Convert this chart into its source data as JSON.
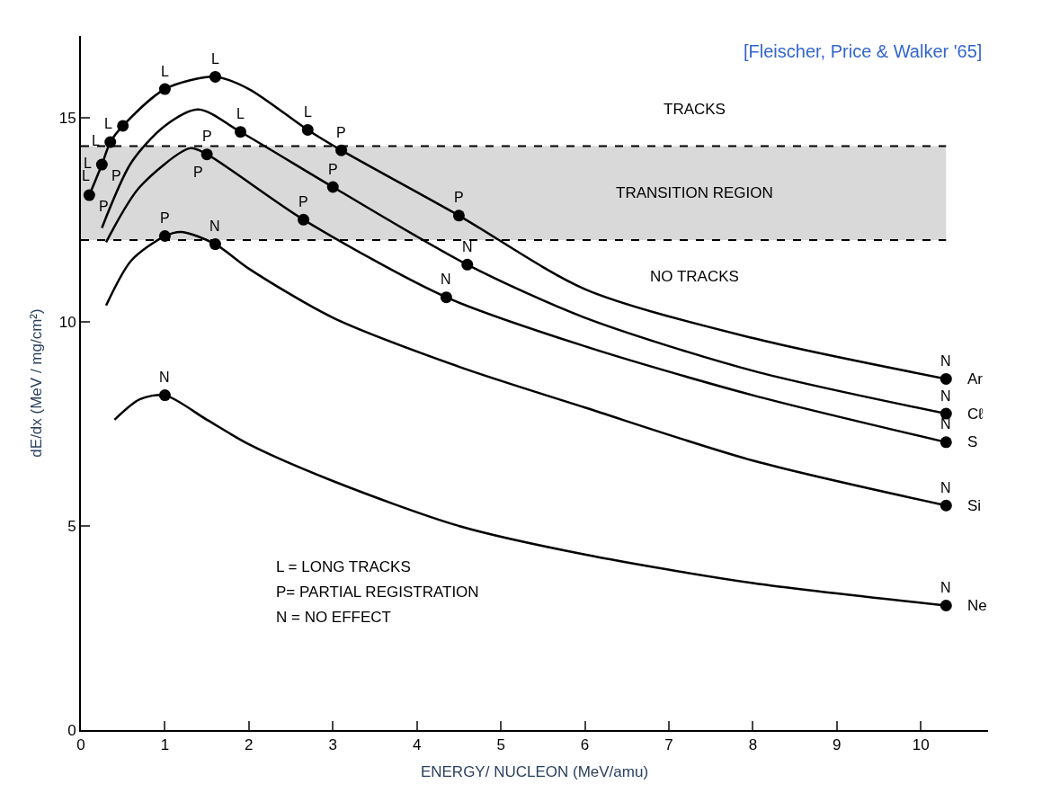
{
  "chart_data": {
    "type": "line",
    "xlabel": "ENERGY/ NUCLEON (MeV/amu)",
    "ylabel": "dE/dx (MeV / mg/cm²)",
    "xlim": [
      0,
      10.8
    ],
    "ylim": [
      0,
      17
    ],
    "xticks": [
      0,
      1,
      2,
      3,
      4,
      5,
      6,
      7,
      8,
      9,
      10
    ],
    "yticks": [
      0,
      5,
      10,
      15
    ],
    "grid": false,
    "legend": false,
    "line_style": "solid",
    "marker": "none",
    "series": [
      {
        "name": "Ar",
        "color": "#000000",
        "x": [
          0.1,
          0.25,
          0.35,
          0.5,
          1.0,
          1.6,
          2.0,
          2.7,
          3.1,
          4.5,
          6,
          8,
          10.3
        ],
        "values": [
          13.1,
          13.85,
          14.4,
          14.8,
          15.7,
          16.0,
          15.7,
          14.7,
          14.2,
          12.6,
          10.8,
          9.6,
          8.6
        ]
      },
      {
        "name": "Cℓ",
        "color": "#000000",
        "x": [
          0.25,
          0.6,
          1.0,
          1.4,
          1.9,
          3.0,
          4.6,
          6,
          8,
          10.3
        ],
        "values": [
          12.3,
          13.9,
          14.8,
          15.2,
          14.65,
          13.3,
          11.4,
          10.1,
          8.8,
          7.75
        ]
      },
      {
        "name": "S",
        "color": "#000000",
        "x": [
          0.3,
          0.7,
          1.3,
          1.5,
          2.65,
          4.35,
          6,
          8,
          10.3
        ],
        "values": [
          11.95,
          13.3,
          14.25,
          14.1,
          12.5,
          10.6,
          9.4,
          8.2,
          7.05
        ]
      },
      {
        "name": "Si",
        "color": "#000000",
        "x": [
          0.3,
          0.6,
          1.0,
          1.2,
          1.6,
          2.0,
          3.0,
          4.5,
          6,
          8,
          10.3
        ],
        "values": [
          10.4,
          11.5,
          12.1,
          12.2,
          11.9,
          11.3,
          10.1,
          8.9,
          7.9,
          6.6,
          5.5
        ]
      },
      {
        "name": "Ne",
        "color": "#000000",
        "x": [
          0.4,
          0.7,
          1.0,
          1.5,
          2.0,
          3.0,
          4.5,
          6,
          8,
          10.3
        ],
        "values": [
          7.6,
          8.1,
          8.2,
          7.6,
          7.0,
          6.1,
          5.0,
          4.3,
          3.6,
          3.05
        ]
      },
      {
        "type": "scatter",
        "marker": "circle",
        "color": "#000000",
        "x": [
          0.1,
          0.25,
          0.35,
          0.5,
          1.0,
          1.6,
          2.7,
          3.1,
          4.5,
          10.3,
          1.9,
          3.0,
          4.6,
          10.3,
          1.5,
          2.65,
          4.35,
          10.3,
          1.0,
          1.6,
          10.3,
          1.0,
          10.3
        ],
        "values": [
          13.1,
          13.85,
          14.4,
          14.8,
          15.7,
          16.0,
          14.7,
          14.2,
          12.6,
          8.6,
          14.65,
          13.3,
          11.4,
          7.75,
          14.1,
          12.5,
          10.6,
          7.05,
          12.1,
          11.9,
          5.5,
          8.2,
          3.05
        ]
      }
    ],
    "ref_lines": [
      {
        "axis": "y",
        "value": 14.3,
        "color": "#000000",
        "line_style": "dashed"
      },
      {
        "axis": "y",
        "value": 12.0,
        "color": "#000000",
        "line_style": "dashed"
      }
    ],
    "bands": [
      {
        "axis": "y",
        "from": 12.0,
        "to": 14.3,
        "label": "TRANSITION REGION",
        "color": "#d9d9d9"
      }
    ],
    "annotations": [
      "TRACKS",
      "NO TRACKS",
      {
        "text": "L",
        "x": 0.1,
        "y": 13.1
      },
      {
        "text": "P",
        "x": 0.1,
        "y": 13.1
      },
      {
        "text": "L",
        "x": 0.25,
        "y": 13.85
      },
      {
        "text": "P",
        "x": 0.25,
        "y": 13.85
      },
      {
        "text": "L",
        "x": 0.35,
        "y": 14.4
      },
      {
        "text": "L",
        "x": 0.5,
        "y": 14.8
      },
      {
        "text": "L",
        "x": 1.0,
        "y": 15.7
      },
      {
        "text": "L",
        "x": 1.6,
        "y": 16.0
      },
      {
        "text": "L",
        "x": 2.7,
        "y": 14.7
      },
      {
        "text": "P",
        "x": 3.1,
        "y": 14.2
      },
      {
        "text": "P",
        "x": 4.5,
        "y": 12.6
      },
      {
        "text": "N",
        "x": 10.3,
        "y": 8.6
      },
      {
        "text": "L",
        "x": 1.9,
        "y": 14.65
      },
      {
        "text": "P",
        "x": 3.0,
        "y": 13.3
      },
      {
        "text": "N",
        "x": 4.6,
        "y": 11.4
      },
      {
        "text": "N",
        "x": 10.3,
        "y": 7.75
      },
      {
        "text": "P",
        "x": 1.5,
        "y": 14.1
      },
      {
        "text": "P",
        "x": 1.5,
        "y": 14.1
      },
      {
        "text": "P",
        "x": 2.65,
        "y": 12.5
      },
      {
        "text": "N",
        "x": 4.35,
        "y": 10.6
      },
      {
        "text": "N",
        "x": 10.3,
        "y": 7.05
      },
      {
        "text": "P",
        "x": 1.0,
        "y": 12.1
      },
      {
        "text": "N",
        "x": 1.6,
        "y": 11.9
      },
      {
        "text": "N",
        "x": 10.3,
        "y": 5.5
      },
      {
        "text": "N",
        "x": 1.0,
        "y": 8.2
      },
      {
        "text": "N",
        "x": 10.3,
        "y": 3.05
      },
      "L = LONG TRACKS",
      "P= PARTIAL REGISTRATION",
      "N = NO EFFECT",
      "[Fleischer, Price & Walker '65]"
    ]
  }
}
